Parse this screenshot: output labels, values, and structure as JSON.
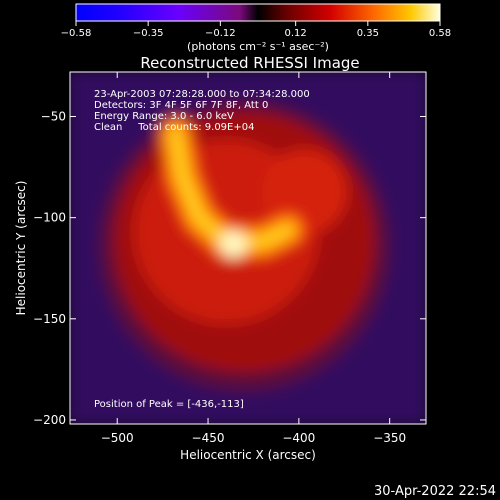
{
  "chart_data": {
    "type": "heatmap",
    "title": "Reconstructed RHESSI Image",
    "xlabel": "Heliocentric X (arcsec)",
    "ylabel": "Heliocentric Y (arcsec)",
    "xlim": [
      -526,
      -330
    ],
    "ylim": [
      -202,
      -28
    ],
    "xticks": [
      -500,
      -450,
      -400,
      -350
    ],
    "xtick_labels": [
      "−500",
      "−450",
      "−400",
      "−350"
    ],
    "yticks": [
      -50,
      -100,
      -150,
      -200
    ],
    "ytick_labels": [
      "−50",
      "−100",
      "−150",
      "−200"
    ],
    "colorbar": {
      "range": [
        -0.58,
        0.58
      ],
      "ticks": [
        -0.58,
        -0.35,
        -0.12,
        0.12,
        0.35,
        0.58
      ],
      "tick_labels": [
        "−0.58",
        "−0.35",
        "−0.12",
        "0.12",
        "0.35",
        "0.58"
      ],
      "unit": "(photons cm⁻² s⁻¹ asec⁻²)"
    },
    "info_lines": [
      "23-Apr-2003 07:28:28.000 to 07:34:28.000",
      "Detectors: 3F 4F 5F 6F 7F 8F, Att 0",
      "Energy Range: 3.0 - 6.0 keV",
      "Clean     Total counts: 9.09E+04"
    ],
    "peak_label": "Position of Peak = [-436,-113]",
    "peak": [
      -436,
      -113
    ],
    "disk_center": [
      -430,
      -112
    ],
    "disk_radius": 78,
    "arc_points": [
      [
        -468,
        -58
      ],
      [
        -464,
        -80
      ],
      [
        -455,
        -100
      ],
      [
        -440,
        -112
      ],
      [
        -420,
        -112
      ],
      [
        -406,
        -106
      ]
    ],
    "grid": false
  },
  "footer": {
    "timestamp": "30-Apr-2022 22:54"
  }
}
